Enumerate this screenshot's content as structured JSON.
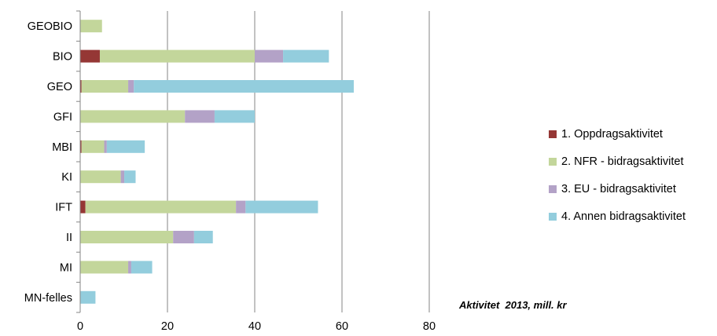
{
  "chart_data": {
    "type": "bar",
    "orientation": "horizontal",
    "stacked": true,
    "categories": [
      "GEOBIO",
      "BIO",
      "GEO",
      "GFI",
      "MBI",
      "KI",
      "IFT",
      "II",
      "MI",
      "MN-felles"
    ],
    "series": [
      {
        "name": "1. Oppdragsaktivitet",
        "color": "#953735",
        "values": [
          0,
          4.5,
          0.3,
          0,
          0.3,
          0,
          1.2,
          0,
          0,
          0
        ]
      },
      {
        "name": "2. NFR - bidragsaktivitet",
        "color": "#c3d69b",
        "values": [
          5,
          35.5,
          10.7,
          24,
          5.2,
          9.3,
          34.5,
          21.3,
          11,
          0
        ]
      },
      {
        "name": "3. EU - bidragsaktivitet",
        "color": "#b3a2c7",
        "values": [
          0,
          6.5,
          1.3,
          6.8,
          0.6,
          0.8,
          2.2,
          4.8,
          0.7,
          0
        ]
      },
      {
        "name": "4. Annen bidragsaktivitet",
        "color": "#93cddd",
        "values": [
          0,
          10.5,
          50.4,
          9.2,
          8.7,
          2.6,
          16.6,
          4.3,
          4.8,
          3.5
        ]
      }
    ],
    "xlim": [
      0,
      80
    ],
    "xticks": [
      0,
      20,
      40,
      60,
      80
    ],
    "grid": "vertical",
    "legend_position": "right",
    "annotation": "Aktivitet  2013, mill. kr"
  }
}
